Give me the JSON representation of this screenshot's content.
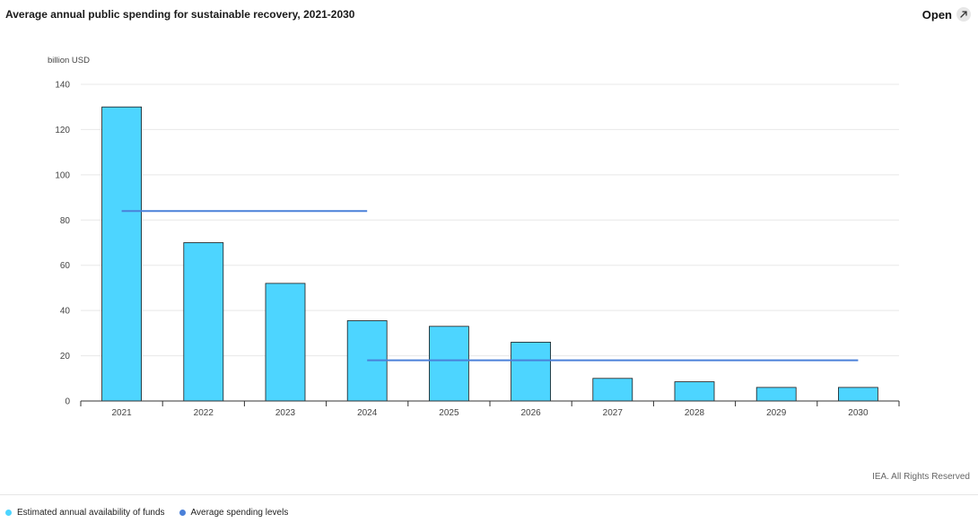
{
  "header": {
    "title": "Average annual public spending for sustainable recovery, 2021-2030",
    "open_label": "Open",
    "open_icon": "external-link-icon"
  },
  "chart_data": {
    "type": "bar",
    "unit_label": "billion USD",
    "categories": [
      "2021",
      "2022",
      "2023",
      "2024",
      "2025",
      "2026",
      "2027",
      "2028",
      "2029",
      "2030"
    ],
    "series": [
      {
        "name": "Estimated annual availability of funds",
        "type": "bar",
        "color": "#4dd5ff",
        "values": [
          130,
          70,
          52,
          35.5,
          33,
          26,
          10,
          8.5,
          6,
          6
        ]
      },
      {
        "name": "Average spending levels",
        "type": "line",
        "color": "#4a80d9",
        "segments": [
          {
            "from": "2021",
            "to": "2024",
            "value": 84
          },
          {
            "from": "2024",
            "to": "2030",
            "value": 18
          }
        ]
      }
    ],
    "ylim": [
      0,
      140
    ],
    "yticks": [
      0,
      20,
      40,
      60,
      80,
      100,
      120,
      140
    ],
    "grid": true,
    "legend_position": "bottom-left"
  },
  "footer": {
    "copyright": "IEA. All Rights Reserved"
  }
}
